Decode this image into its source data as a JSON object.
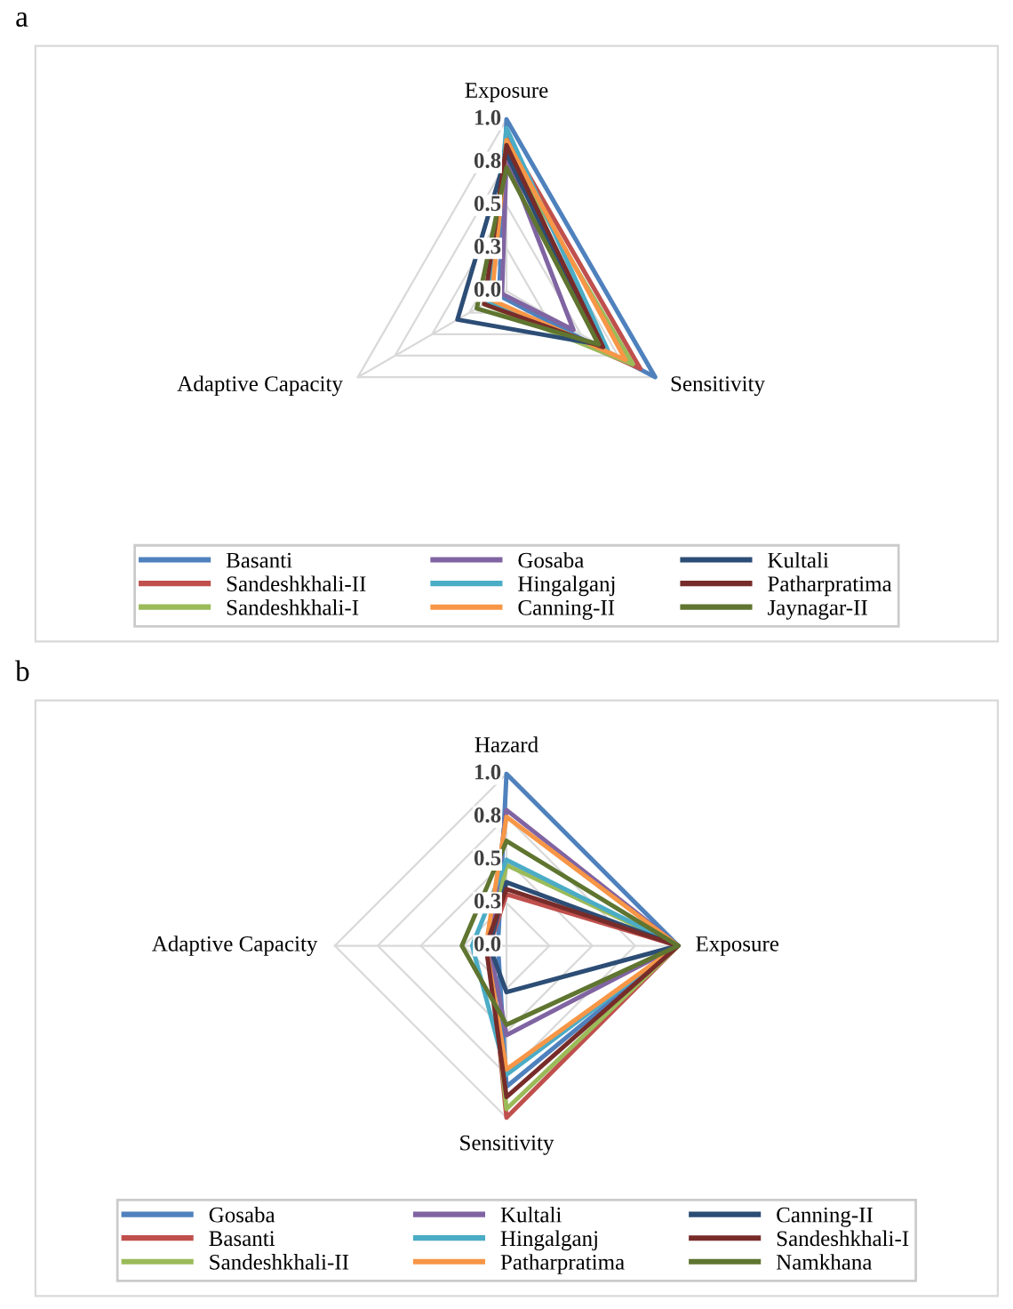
{
  "chart_data": [
    {
      "type": "radar",
      "title": "a",
      "categories": [
        "Exposure",
        "Sensitivity",
        "Adaptive Capacity"
      ],
      "ylim": [
        0,
        1
      ],
      "yticks": [
        {
          "value": 0,
          "label": "0.0"
        },
        {
          "value": 0.25,
          "label": "0.3"
        },
        0.5,
        {
          "value": 0.75,
          "label": "0.8"
        },
        {
          "value": 1,
          "label": "1.0"
        }
      ],
      "grid": true,
      "legend": "bottom",
      "series": [
        {
          "name": "Basanti",
          "color": "#4f81bd",
          "values": [
            1.0,
            1.0,
            0.05
          ]
        },
        {
          "name": "Sandeshkhali-II",
          "color": "#c0504d",
          "values": [
            0.9,
            0.9,
            0.12
          ]
        },
        {
          "name": "Sandeshkhali-I",
          "color": "#9bbb59",
          "values": [
            0.82,
            0.85,
            0.15
          ]
        },
        {
          "name": "Gosaba",
          "color": "#8064a2",
          "values": [
            0.78,
            0.45,
            0.03
          ]
        },
        {
          "name": "Hingalganj",
          "color": "#4bacc6",
          "values": [
            0.95,
            0.68,
            0.12
          ]
        },
        {
          "name": "Canning-II",
          "color": "#f79646",
          "values": [
            0.88,
            0.8,
            0.1
          ]
        },
        {
          "name": "Kultali",
          "color": "#2c4d75",
          "values": [
            0.8,
            0.62,
            0.33
          ]
        },
        {
          "name": "Patharpratima",
          "color": "#772c2a",
          "values": [
            0.85,
            0.65,
            0.15
          ]
        },
        {
          "name": "Jaynagar-II",
          "color": "#5f7530",
          "values": [
            0.72,
            0.62,
            0.2
          ]
        }
      ]
    },
    {
      "type": "radar",
      "title": "b",
      "categories": [
        "Hazard",
        "Exposure",
        "Sensitivity",
        "Adaptive Capacity"
      ],
      "ylim": [
        0,
        1
      ],
      "yticks": [
        {
          "value": 0,
          "label": "0.0"
        },
        {
          "value": 0.25,
          "label": "0.3"
        },
        0.5,
        {
          "value": 0.75,
          "label": "0.8"
        },
        {
          "value": 1,
          "label": "1.0"
        }
      ],
      "grid": true,
      "legend": "bottom",
      "series": [
        {
          "name": "Gosaba",
          "color": "#4f81bd",
          "values": [
            1.0,
            1.0,
            0.82,
            0.05
          ]
        },
        {
          "name": "Basanti",
          "color": "#c0504d",
          "values": [
            0.3,
            1.0,
            1.0,
            0.1
          ]
        },
        {
          "name": "Sandeshkhali-II",
          "color": "#9bbb59",
          "values": [
            0.47,
            1.0,
            0.95,
            0.1
          ]
        },
        {
          "name": "Kultali",
          "color": "#8064a2",
          "values": [
            0.79,
            1.0,
            0.52,
            0.1
          ]
        },
        {
          "name": "Hingalganj",
          "color": "#4bacc6",
          "values": [
            0.5,
            1.0,
            0.75,
            0.2
          ]
        },
        {
          "name": "Patharpratima",
          "color": "#f79646",
          "values": [
            0.75,
            1.0,
            0.72,
            0.12
          ]
        },
        {
          "name": "Canning-II",
          "color": "#2c4d75",
          "values": [
            0.37,
            1.0,
            0.27,
            0.1
          ]
        },
        {
          "name": "Sandeshkhali-I",
          "color": "#772c2a",
          "values": [
            0.33,
            1.0,
            0.88,
            0.12
          ]
        },
        {
          "name": "Namkhana",
          "color": "#5f7530",
          "values": [
            0.61,
            1.0,
            0.46,
            0.26
          ]
        }
      ]
    }
  ]
}
